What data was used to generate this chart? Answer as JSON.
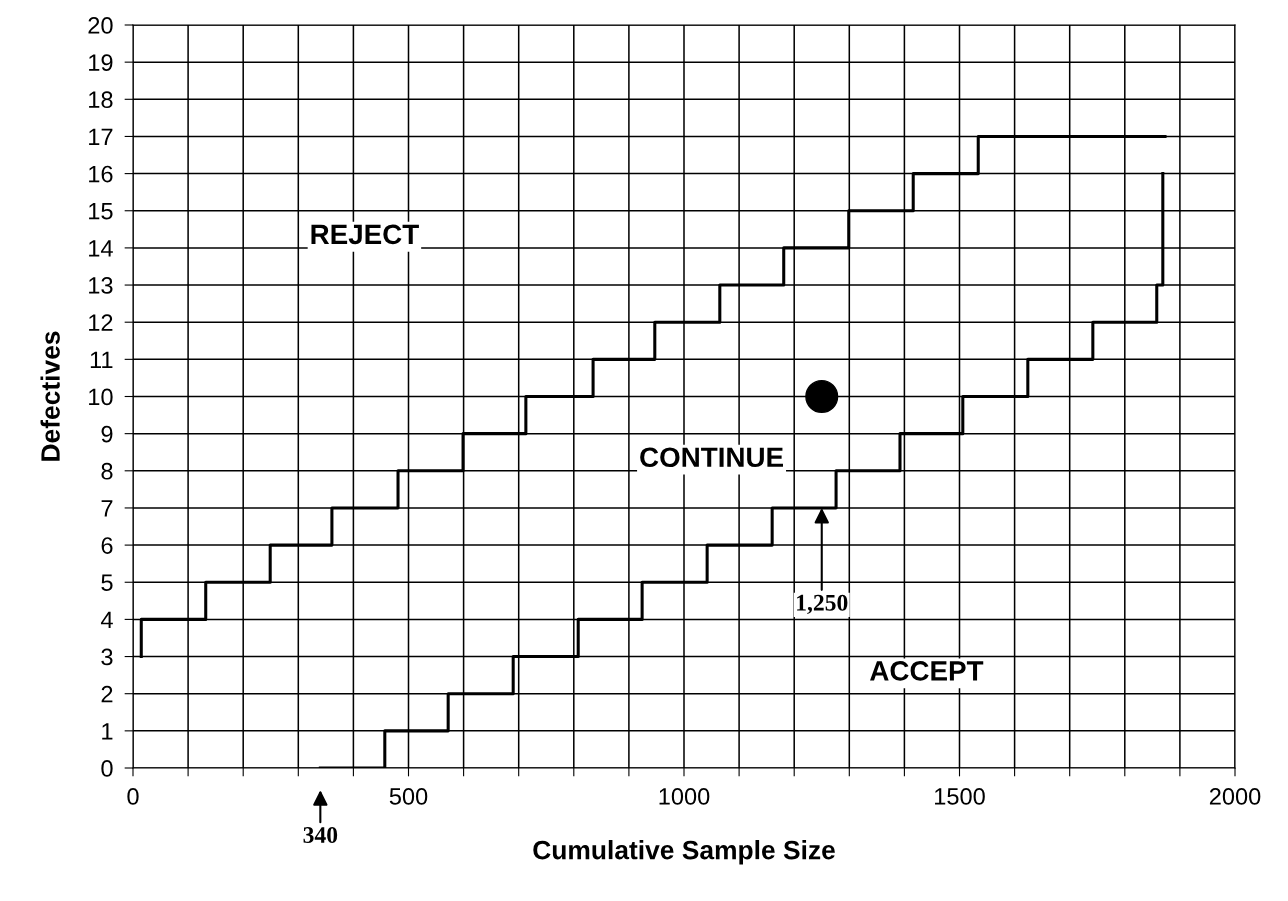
{
  "chart_data": {
    "type": "step",
    "xlabel": "Cumulative Sample Size",
    "ylabel": "Defectives",
    "series": [
      {
        "color": "#000000",
        "x": [
          15,
          15,
          132,
          249,
          361,
          481,
          599,
          713,
          835,
          947,
          1065,
          1181,
          1299,
          1416,
          1534,
          1873
        ],
        "values": [
          3,
          4,
          5,
          6,
          7,
          8,
          9,
          10,
          11,
          12,
          13,
          14,
          15,
          16,
          17,
          17
        ]
      },
      {
        "color": "#000000",
        "x": [
          340,
          457,
          572,
          690,
          808,
          924,
          1042,
          1160,
          1276,
          1392,
          1506,
          1624,
          1742,
          1858,
          1869
        ],
        "values": [
          0,
          1,
          2,
          3,
          4,
          5,
          6,
          7,
          8,
          9,
          10,
          11,
          12,
          13,
          16
        ]
      },
      {
        "type": "scatter",
        "color": "#000000",
        "marker": "circle",
        "x": [
          1250
        ],
        "values": [
          10
        ]
      }
    ],
    "annotations": [
      "REJECT",
      "CONTINUE",
      "ACCEPT",
      {
        "text": "340",
        "x": 340,
        "y": 0
      },
      {
        "text": "1,250",
        "x": 1250,
        "y": 7
      }
    ],
    "xlim": [
      0,
      2000
    ],
    "ylim": [
      0,
      20
    ],
    "xticks": [
      0,
      {
        "value": 100,
        "label": null
      },
      {
        "value": 200,
        "label": null
      },
      {
        "value": 300,
        "label": null
      },
      {
        "value": 400,
        "label": null
      },
      500,
      {
        "value": 600,
        "label": null
      },
      {
        "value": 700,
        "label": null
      },
      {
        "value": 800,
        "label": null
      },
      {
        "value": 900,
        "label": null
      },
      1000,
      {
        "value": 1100,
        "label": null
      },
      {
        "value": 1200,
        "label": null
      },
      {
        "value": 1300,
        "label": null
      },
      {
        "value": 1400,
        "label": null
      },
      1500,
      {
        "value": 1600,
        "label": null
      },
      {
        "value": 1700,
        "label": null
      },
      {
        "value": 1800,
        "label": null
      },
      {
        "value": 1900,
        "label": null
      },
      2000
    ],
    "yticks": [
      0,
      1,
      2,
      3,
      4,
      5,
      6,
      7,
      8,
      9,
      10,
      11,
      12,
      13,
      14,
      15,
      16,
      17,
      18,
      19,
      20
    ],
    "grid": true
  }
}
